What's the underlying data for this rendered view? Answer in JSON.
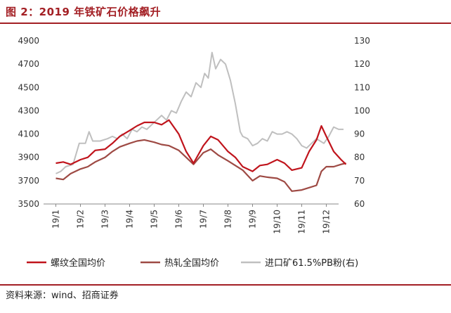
{
  "header": {
    "title": "图 2：2019 年铁矿石价格飙升"
  },
  "footer": {
    "source": "资料来源：wind、招商证券"
  },
  "chart_data": {
    "type": "line",
    "categories": [
      "19/1",
      "19/2",
      "19/3",
      "19/4",
      "19/5",
      "19/6",
      "19/7",
      "19/8",
      "19/9",
      "19/10",
      "19/11",
      "19/12"
    ],
    "y_left": {
      "ylim": [
        3500,
        4900
      ],
      "ticks": [
        3500,
        3700,
        3900,
        4100,
        4300,
        4500,
        4700,
        4900
      ]
    },
    "y_right": {
      "ylim": [
        60,
        130
      ],
      "ticks": [
        60,
        70,
        80,
        90,
        100,
        110,
        120,
        130
      ]
    },
    "grid": false,
    "legend_position": "bottom",
    "series": [
      {
        "name": "螺纹全国均价",
        "axis": "left",
        "color": "#c0141c",
        "points": [
          [
            0,
            3850
          ],
          [
            0.3,
            3860
          ],
          [
            0.6,
            3840
          ],
          [
            1.0,
            3880
          ],
          [
            1.3,
            3900
          ],
          [
            1.6,
            3960
          ],
          [
            2.0,
            3970
          ],
          [
            2.3,
            4020
          ],
          [
            2.6,
            4080
          ],
          [
            3.0,
            4130
          ],
          [
            3.3,
            4170
          ],
          [
            3.6,
            4200
          ],
          [
            4.0,
            4200
          ],
          [
            4.3,
            4180
          ],
          [
            4.6,
            4220
          ],
          [
            5.0,
            4100
          ],
          [
            5.3,
            3950
          ],
          [
            5.6,
            3850
          ],
          [
            6.0,
            4000
          ],
          [
            6.3,
            4080
          ],
          [
            6.6,
            4050
          ],
          [
            7.0,
            3950
          ],
          [
            7.3,
            3900
          ],
          [
            7.6,
            3820
          ],
          [
            8.0,
            3780
          ],
          [
            8.3,
            3830
          ],
          [
            8.6,
            3840
          ],
          [
            9.0,
            3880
          ],
          [
            9.3,
            3850
          ],
          [
            9.6,
            3790
          ],
          [
            10.0,
            3810
          ],
          [
            10.3,
            3950
          ],
          [
            10.6,
            4050
          ],
          [
            10.8,
            4170
          ],
          [
            11.0,
            4080
          ],
          [
            11.3,
            3950
          ],
          [
            11.6,
            3880
          ],
          [
            11.8,
            3840
          ]
        ]
      },
      {
        "name": "热轧全国均价",
        "axis": "left",
        "color": "#9e4a44",
        "points": [
          [
            0,
            3720
          ],
          [
            0.3,
            3710
          ],
          [
            0.6,
            3760
          ],
          [
            1.0,
            3800
          ],
          [
            1.3,
            3820
          ],
          [
            1.6,
            3860
          ],
          [
            2.0,
            3900
          ],
          [
            2.3,
            3950
          ],
          [
            2.6,
            3990
          ],
          [
            3.0,
            4020
          ],
          [
            3.3,
            4040
          ],
          [
            3.6,
            4050
          ],
          [
            4.0,
            4030
          ],
          [
            4.3,
            4010
          ],
          [
            4.6,
            4000
          ],
          [
            5.0,
            3960
          ],
          [
            5.3,
            3900
          ],
          [
            5.6,
            3840
          ],
          [
            6.0,
            3940
          ],
          [
            6.3,
            3970
          ],
          [
            6.6,
            3920
          ],
          [
            7.0,
            3870
          ],
          [
            7.3,
            3830
          ],
          [
            7.6,
            3790
          ],
          [
            8.0,
            3700
          ],
          [
            8.3,
            3740
          ],
          [
            8.6,
            3730
          ],
          [
            9.0,
            3720
          ],
          [
            9.3,
            3690
          ],
          [
            9.6,
            3610
          ],
          [
            10.0,
            3620
          ],
          [
            10.3,
            3640
          ],
          [
            10.6,
            3660
          ],
          [
            10.8,
            3780
          ],
          [
            11.0,
            3820
          ],
          [
            11.3,
            3820
          ],
          [
            11.6,
            3840
          ],
          [
            11.8,
            3850
          ]
        ]
      },
      {
        "name": "进口矿61.5%PB粉(右)",
        "axis": "right",
        "color": "#bfbfbf",
        "points": [
          [
            0,
            73
          ],
          [
            0.2,
            74
          ],
          [
            0.4,
            76
          ],
          [
            0.7,
            77
          ],
          [
            0.95,
            86
          ],
          [
            1.2,
            86
          ],
          [
            1.35,
            91
          ],
          [
            1.5,
            87
          ],
          [
            1.8,
            87
          ],
          [
            2.1,
            88
          ],
          [
            2.3,
            89
          ],
          [
            2.5,
            88
          ],
          [
            2.7,
            90
          ],
          [
            2.9,
            88
          ],
          [
            3.1,
            92
          ],
          [
            3.3,
            91
          ],
          [
            3.5,
            93
          ],
          [
            3.7,
            92
          ],
          [
            3.9,
            94
          ],
          [
            4.1,
            96
          ],
          [
            4.3,
            98
          ],
          [
            4.5,
            96
          ],
          [
            4.7,
            100
          ],
          [
            4.9,
            99
          ],
          [
            5.1,
            104
          ],
          [
            5.3,
            108
          ],
          [
            5.5,
            106
          ],
          [
            5.7,
            112
          ],
          [
            5.9,
            110
          ],
          [
            6.05,
            116
          ],
          [
            6.2,
            114
          ],
          [
            6.35,
            125
          ],
          [
            6.5,
            118
          ],
          [
            6.7,
            122
          ],
          [
            6.9,
            120
          ],
          [
            7.1,
            113
          ],
          [
            7.3,
            103
          ],
          [
            7.5,
            91
          ],
          [
            7.6,
            89
          ],
          [
            7.8,
            88
          ],
          [
            8.0,
            85
          ],
          [
            8.2,
            86
          ],
          [
            8.4,
            88
          ],
          [
            8.6,
            87
          ],
          [
            8.8,
            91
          ],
          [
            9.0,
            90
          ],
          [
            9.2,
            90
          ],
          [
            9.4,
            91
          ],
          [
            9.6,
            90
          ],
          [
            9.8,
            88
          ],
          [
            10.0,
            85
          ],
          [
            10.2,
            84
          ],
          [
            10.4,
            86
          ],
          [
            10.6,
            88
          ],
          [
            10.75,
            87
          ],
          [
            10.9,
            86
          ],
          [
            11.1,
            89
          ],
          [
            11.3,
            93
          ],
          [
            11.5,
            92
          ],
          [
            11.7,
            92
          ]
        ]
      }
    ]
  }
}
